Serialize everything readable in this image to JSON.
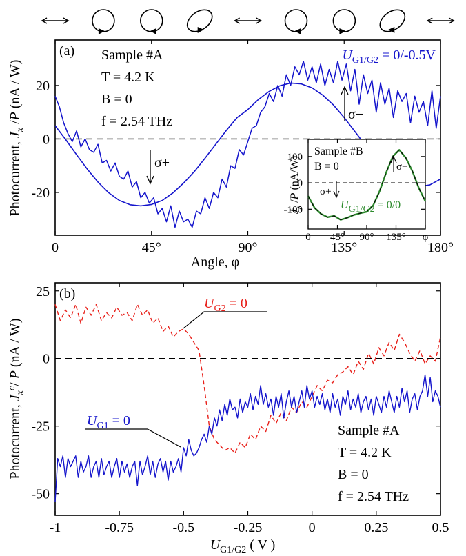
{
  "colors": {
    "blue": "#1414cc",
    "red": "#e8201a",
    "green": "#2e8b2e",
    "black": "#000000"
  },
  "polarization_icons": [
    "double-arrow-horizontal",
    "ellipse-cw",
    "ellipse-ccw",
    "ellipse-tilted-cw",
    "double-arrow-horizontal",
    "ellipse-ccw",
    "ellipse-cw",
    "ellipse-tilted-ccw",
    "double-arrow-horizontal"
  ],
  "chart_data": [
    {
      "id": "a",
      "type": "line",
      "panel_label": "(a)",
      "xlabel": "Angle, φ",
      "ylabel_html": "Photocurrent, <tspan font-style='italic'>J</tspan><tspan font-style='italic' font-size='14' dy='5'>x</tspan><tspan dy='-5'> /</tspan><tspan font-style='italic'>P</tspan> (nA / W)",
      "xlim": [
        0,
        180
      ],
      "ylim": [
        -36,
        37
      ],
      "xticks": [
        0,
        45,
        90,
        135,
        180
      ],
      "xtick_labels": [
        "0",
        "45°",
        "90°",
        "135°",
        "180°"
      ],
      "yticks": [
        -20,
        0,
        20
      ],
      "ytick_labels": [
        "-20",
        "0",
        "20"
      ],
      "params": [
        "Sample #A",
        "T = 4.2 K",
        "B = 0",
        "f = 2.54 THz"
      ],
      "series_label": "U G1/G2 = 0/-0.5V",
      "annotations": [
        "σ+",
        "σ−"
      ],
      "dashed_zero": true,
      "series": [
        {
          "name": "U G1/G2 = 0/-0.5V",
          "color": "#1414cc",
          "x": [
            0,
            2,
            4,
            6,
            8,
            10,
            12,
            14,
            16,
            18,
            20,
            22,
            24,
            26,
            28,
            30,
            32,
            34,
            36,
            38,
            40,
            42,
            44,
            46,
            48,
            50,
            52,
            54,
            56,
            58,
            60,
            62,
            64,
            66,
            68,
            70,
            72,
            74,
            76,
            78,
            80,
            82,
            84,
            86,
            88,
            90,
            92,
            94,
            96,
            98,
            100,
            102,
            104,
            106,
            108,
            110,
            112,
            114,
            116,
            118,
            120,
            122,
            124,
            126,
            128,
            130,
            132,
            134,
            136,
            138,
            140,
            142,
            144,
            146,
            148,
            150,
            152,
            154,
            156,
            158,
            160,
            162,
            164,
            166,
            168,
            170,
            172,
            174,
            176,
            178,
            180
          ],
          "y": [
            16,
            12,
            6,
            2,
            -1,
            3,
            -3,
            0,
            -4,
            -5,
            -2,
            -9,
            -8,
            -12,
            -9,
            -14,
            -15,
            -12,
            -18,
            -16,
            -22,
            -20,
            -24,
            -22,
            -28,
            -26,
            -31,
            -25,
            -33,
            -27,
            -31,
            -30,
            -33,
            -27,
            -28,
            -22,
            -26,
            -20,
            -22,
            -15,
            -18,
            -10,
            -11,
            -4,
            -6,
            -1,
            4,
            5,
            10,
            12,
            17,
            14,
            20,
            16,
            24,
            20,
            27,
            24,
            29,
            22,
            27,
            21,
            28,
            20,
            26,
            21,
            29,
            22,
            28,
            18,
            26,
            13,
            24,
            17,
            22,
            10,
            21,
            13,
            19,
            8,
            18,
            14,
            17,
            6,
            16,
            10,
            14,
            5,
            18,
            4,
            16
          ]
        },
        {
          "name": "fit",
          "color": "#1414cc",
          "fit": true,
          "model": "-24.5*sin(2x) + 8*cos(2x) - 3",
          "x": [
            0,
            5,
            10,
            15,
            20,
            25,
            30,
            35,
            40,
            45,
            50,
            55,
            60,
            65,
            70,
            75,
            80,
            85,
            90,
            95,
            100,
            105,
            110,
            115,
            120,
            125,
            130,
            135,
            140,
            145,
            150,
            155,
            160,
            165,
            170,
            175,
            180
          ],
          "y": [
            5.0,
            -0.3,
            -5.9,
            -11.3,
            -16.1,
            -20.1,
            -23.0,
            -24.6,
            -25.0,
            -24.5,
            -23.0,
            -20.2,
            -16.5,
            -12.2,
            -7.2,
            -2.0,
            3.2,
            8.0,
            11.0,
            14.8,
            17.8,
            19.9,
            20.9,
            20.6,
            19.1,
            16.4,
            12.7,
            8.0,
            2.8,
            -2.4,
            -7.3,
            -11.5,
            -14.8,
            -17.0,
            -17.8,
            -17.2,
            -15.0
          ]
        }
      ],
      "inset": {
        "type": "line",
        "params": [
          "Sample #B",
          "B = 0"
        ],
        "ylabel_html": "<tspan font-style='italic'>J</tspan><tspan font-style='italic' font-size='12' dy='4'>x</tspan><tspan dy='-4'> /</tspan><tspan font-style='italic'>P</tspan> (nA/W)",
        "series_label": "U G1/G2 = 0/0",
        "annotations": [
          "σ+",
          "σ−"
        ],
        "xlim": [
          0,
          180
        ],
        "ylim": [
          -175,
          165
        ],
        "xticks": [
          0,
          45,
          90,
          135,
          180
        ],
        "xtick_labels": [
          "0",
          "45°",
          "90°",
          "135°",
          "φ"
        ],
        "yticks": [
          -100,
          0,
          100
        ],
        "ytick_labels": [
          "-100",
          "0",
          "100"
        ],
        "series": [
          {
            "name": "U G1/G2 = 0/0",
            "color": "#2e8b2e",
            "x": [
              0,
              10,
              20,
              30,
              40,
              50,
              60,
              70,
              80,
              90,
              100,
              110,
              120,
              130,
              140,
              150,
              160,
              170,
              180
            ],
            "y": [
              -50,
              -95,
              -118,
              -130,
              -125,
              -140,
              -132,
              -122,
              -115,
              -110,
              -85,
              -30,
              40,
              100,
              125,
              95,
              45,
              -20,
              -70
            ]
          }
        ]
      }
    },
    {
      "id": "b",
      "type": "line",
      "panel_label": "(b)",
      "xlabel_html": "<tspan font-style='italic'>U</tspan><tspan font-size='14' dy='5'>G1/G2</tspan><tspan dy='-5'> ( V )</tspan>",
      "ylabel_html": "Photocurrent, <tspan font-style='italic'>J</tspan><tspan font-style='italic' font-size='14' dy='5'>x</tspan><tspan font-style='italic' font-size='14' dy='-12'>c</tspan><tspan dy='7'>/ </tspan><tspan font-style='italic'>P</tspan> (nA / W)",
      "xlim": [
        -1,
        0.5
      ],
      "ylim": [
        -58,
        28
      ],
      "xticks": [
        -1,
        -0.75,
        -0.5,
        -0.25,
        0,
        0.25,
        0.5
      ],
      "xtick_labels": [
        "-1",
        "-0.75",
        "-0.5",
        "-0.25",
        "0",
        "0.25",
        "0.5"
      ],
      "yticks": [
        -50,
        -25,
        0,
        25
      ],
      "ytick_labels": [
        "-50",
        "-25",
        "0",
        "25"
      ],
      "params": [
        "Sample #A",
        "T = 4.2 K",
        "B = 0",
        "f = 2.54 THz"
      ],
      "dashed_zero": true,
      "series": [
        {
          "name": "U G1 = 0",
          "color": "#1414cc",
          "dash": false,
          "x": [
            -1,
            -0.99,
            -0.98,
            -0.97,
            -0.96,
            -0.95,
            -0.94,
            -0.93,
            -0.92,
            -0.91,
            -0.9,
            -0.89,
            -0.88,
            -0.87,
            -0.86,
            -0.85,
            -0.84,
            -0.83,
            -0.82,
            -0.81,
            -0.8,
            -0.79,
            -0.78,
            -0.77,
            -0.76,
            -0.75,
            -0.74,
            -0.73,
            -0.72,
            -0.71,
            -0.7,
            -0.69,
            -0.68,
            -0.67,
            -0.66,
            -0.65,
            -0.64,
            -0.63,
            -0.62,
            -0.61,
            -0.6,
            -0.59,
            -0.58,
            -0.57,
            -0.56,
            -0.55,
            -0.54,
            -0.53,
            -0.52,
            -0.51,
            -0.5,
            -0.49,
            -0.48,
            -0.47,
            -0.46,
            -0.45,
            -0.44,
            -0.43,
            -0.42,
            -0.41,
            -0.4,
            -0.39,
            -0.38,
            -0.37,
            -0.36,
            -0.35,
            -0.34,
            -0.33,
            -0.32,
            -0.31,
            -0.3,
            -0.29,
            -0.28,
            -0.27,
            -0.26,
            -0.25,
            -0.24,
            -0.23,
            -0.22,
            -0.21,
            -0.2,
            -0.19,
            -0.18,
            -0.17,
            -0.16,
            -0.15,
            -0.14,
            -0.13,
            -0.12,
            -0.11,
            -0.1,
            -0.09,
            -0.08,
            -0.07,
            -0.06,
            -0.05,
            -0.04,
            -0.03,
            -0.02,
            -0.01,
            0,
            0.01,
            0.02,
            0.03,
            0.04,
            0.05,
            0.06,
            0.07,
            0.08,
            0.09,
            0.1,
            0.11,
            0.12,
            0.13,
            0.14,
            0.15,
            0.16,
            0.17,
            0.18,
            0.19,
            0.2,
            0.21,
            0.22,
            0.23,
            0.24,
            0.25,
            0.26,
            0.27,
            0.28,
            0.29,
            0.3,
            0.31,
            0.32,
            0.33,
            0.34,
            0.35,
            0.36,
            0.37,
            0.38,
            0.39,
            0.4,
            0.41,
            0.42,
            0.43,
            0.44,
            0.45,
            0.46,
            0.47,
            0.48,
            0.49,
            0.5
          ],
          "y": [
            -53,
            -37,
            -40,
            -36,
            -44,
            -37,
            -40,
            -38,
            -36,
            -44,
            -38,
            -42,
            -40,
            -36,
            -44,
            -40,
            -38,
            -44,
            -37,
            -43,
            -40,
            -38,
            -44,
            -40,
            -37,
            -44,
            -38,
            -42,
            -39,
            -44,
            -40,
            -38,
            -47,
            -38,
            -43,
            -40,
            -36,
            -43,
            -38,
            -44,
            -39,
            -37,
            -42,
            -38,
            -45,
            -38,
            -42,
            -40,
            -37,
            -42,
            -33,
            -36,
            -30,
            -34,
            -36,
            -35,
            -33,
            -30,
            -28,
            -31,
            -25,
            -28,
            -22,
            -25,
            -19,
            -23,
            -17,
            -21,
            -15,
            -19,
            -18,
            -22,
            -15,
            -20,
            -16,
            -18,
            -13,
            -19,
            -14,
            -17,
            -10,
            -17,
            -13,
            -18,
            -15,
            -21,
            -14,
            -18,
            -13,
            -22,
            -16,
            -12,
            -18,
            -14,
            -20,
            -16,
            -12,
            -18,
            -10,
            -15,
            -12,
            -18,
            -14,
            -17,
            -13,
            -19,
            -15,
            -20,
            -13,
            -18,
            -15,
            -21,
            -14,
            -17,
            -12,
            -19,
            -15,
            -18,
            -13,
            -20,
            -16,
            -14,
            -19,
            -15,
            -21,
            -14,
            -17,
            -20,
            -14,
            -18,
            -12,
            -16,
            -20,
            -14,
            -18,
            -11,
            -16,
            -12,
            -20,
            -15,
            -13,
            -19,
            -14,
            -12,
            -6,
            -14,
            -7,
            -16,
            -12,
            -14,
            -18
          ]
        },
        {
          "name": "U G2 = 0",
          "color": "#e8201a",
          "dash": true,
          "x": [
            -1,
            -0.98,
            -0.96,
            -0.94,
            -0.92,
            -0.9,
            -0.88,
            -0.86,
            -0.84,
            -0.82,
            -0.8,
            -0.78,
            -0.76,
            -0.74,
            -0.72,
            -0.7,
            -0.68,
            -0.66,
            -0.64,
            -0.62,
            -0.6,
            -0.58,
            -0.56,
            -0.54,
            -0.52,
            -0.5,
            -0.48,
            -0.46,
            -0.44,
            -0.42,
            -0.4,
            -0.38,
            -0.36,
            -0.34,
            -0.32,
            -0.3,
            -0.28,
            -0.26,
            -0.24,
            -0.22,
            -0.2,
            -0.18,
            -0.16,
            -0.14,
            -0.12,
            -0.1,
            -0.08,
            -0.06,
            -0.04,
            -0.02,
            0,
            0.02,
            0.04,
            0.06,
            0.08,
            0.1,
            0.12,
            0.14,
            0.16,
            0.18,
            0.2,
            0.22,
            0.24,
            0.26,
            0.28,
            0.3,
            0.32,
            0.34,
            0.36,
            0.38,
            0.4,
            0.42,
            0.44,
            0.46,
            0.48,
            0.5
          ],
          "y": [
            20,
            14,
            18,
            15,
            20,
            13,
            19,
            16,
            20,
            14,
            17,
            15,
            19,
            16,
            17,
            14,
            20,
            16,
            18,
            13,
            15,
            10,
            12,
            8,
            10,
            11,
            9,
            6,
            3,
            -10,
            -25,
            -30,
            -32,
            -34,
            -33,
            -35,
            -31,
            -33,
            -28,
            -30,
            -25,
            -27,
            -21,
            -24,
            -20,
            -23,
            -18,
            -20,
            -16,
            -18,
            -14,
            -10,
            -12,
            -8,
            -9,
            -6,
            -5,
            -3,
            -6,
            -1,
            -4,
            2,
            -2,
            4,
            1,
            6,
            3,
            9,
            6,
            2,
            -1,
            3,
            -2,
            1,
            -1,
            8
          ]
        }
      ],
      "series_labels": [
        "U G2 = 0",
        "U G1 = 0"
      ]
    }
  ]
}
